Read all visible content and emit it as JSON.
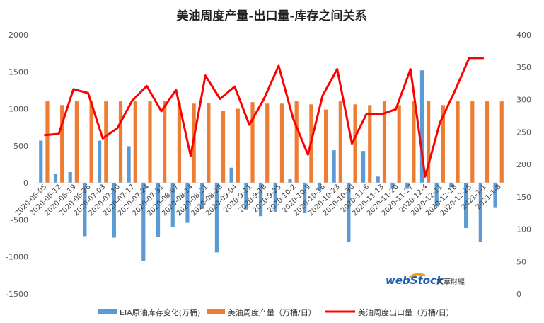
{
  "chart_data": {
    "type": "bar",
    "title": "美油周度产量-出口量-库存之间关系",
    "categories": [
      "2020-06-05",
      "2020-06-12",
      "2020-06-19",
      "2020-06-26",
      "2020-07-03",
      "2020-07-10",
      "2020-07-17",
      "2020-07-24",
      "2020-07-31",
      "2020-08-07",
      "2020-08-14",
      "2020-08-21",
      "2020-08-28",
      "2020-09-04",
      "2020-9-11",
      "2020-9-18",
      "2020-9-25",
      "2020-10-2",
      "2020-10-9",
      "2020-10-16",
      "2020-10-23",
      "2020-10-30",
      "2020-11-6",
      "2020-11-13",
      "2020-11-20",
      "2020-11-27",
      "2020-12-4",
      "2020-12-11",
      "2020-12-18",
      "2020-12-25",
      "2021-1-1",
      "2021-1-8"
    ],
    "series": [
      {
        "name": "EIA原油库存变化(万桶)",
        "axis": "left",
        "kind": "bar",
        "color": "#5b9bd5",
        "values": [
          570,
          120,
          145,
          -720,
          570,
          -740,
          495,
          -1060,
          -730,
          -600,
          -540,
          -350,
          -940,
          205,
          -360,
          -450,
          -390,
          55,
          -410,
          -100,
          440,
          -800,
          430,
          85,
          -80,
          -80,
          1520,
          -320,
          -60,
          -610,
          -800,
          -330
        ]
      },
      {
        "name": "美油周度产量（万桶/日）",
        "axis": "left",
        "kind": "bar",
        "color": "#ed7d31",
        "values": [
          1100,
          1050,
          1100,
          1100,
          1100,
          1100,
          1100,
          1100,
          1100,
          1080,
          1070,
          1080,
          970,
          1000,
          1090,
          1070,
          1070,
          1100,
          1060,
          990,
          1100,
          1060,
          1050,
          1100,
          1050,
          1100,
          1110,
          1050,
          1100,
          1100,
          1100,
          1100
        ]
      },
      {
        "name": "美油周度出口量（万桶/日）",
        "axis": "right",
        "kind": "line",
        "color": "#ff0000",
        "values": [
          245,
          247,
          316,
          310,
          240,
          256,
          298,
          321,
          282,
          315,
          213,
          337,
          301,
          320,
          261,
          301,
          352,
          270,
          215,
          306,
          347,
          232,
          278,
          277,
          285,
          347,
          181,
          264,
          312,
          364,
          364,
          null
        ]
      }
    ],
    "y_left": {
      "min": -1500,
      "max": 2000,
      "ticks": [
        -1500,
        -1000,
        -500,
        0,
        500,
        1000,
        1500,
        2000
      ]
    },
    "y_right": {
      "min": 0,
      "max": 400,
      "ticks": [
        0,
        50,
        100,
        150,
        200,
        250,
        300,
        350,
        400
      ]
    },
    "grid": false,
    "legend_position": "bottom"
  },
  "logo": {
    "brand_text": "webStock",
    "chinese_text": "文華財經"
  }
}
